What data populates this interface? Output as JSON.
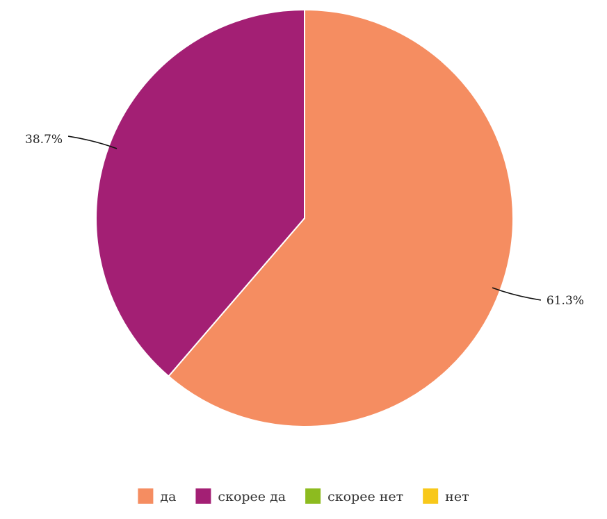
{
  "chart_data": {
    "type": "pie",
    "categories": [
      "да",
      "скорее да",
      "скорее нет",
      "нет"
    ],
    "values": [
      61.3,
      38.7,
      0,
      0
    ],
    "labels": [
      "61.3%",
      "38.7%",
      "",
      ""
    ],
    "colors": [
      "#F58D61",
      "#A31F74",
      "#8DBB1F",
      "#F8C81A"
    ],
    "legend_position": "bottom",
    "start_angle": "12 o'clock",
    "direction": "clockwise"
  }
}
